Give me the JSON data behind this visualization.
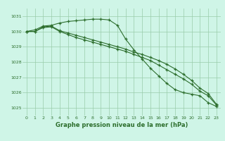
{
  "x": [
    0,
    1,
    2,
    3,
    4,
    5,
    6,
    7,
    8,
    9,
    10,
    11,
    12,
    13,
    14,
    15,
    16,
    17,
    18,
    19,
    20,
    21,
    22,
    23
  ],
  "line1": [
    1030.0,
    1030.1,
    1030.35,
    1030.4,
    1030.55,
    1030.65,
    1030.7,
    1030.75,
    1030.8,
    1030.8,
    1030.75,
    1030.4,
    1029.5,
    1028.8,
    1028.2,
    1027.6,
    1027.1,
    1026.6,
    1026.2,
    1026.0,
    1025.9,
    1025.8,
    1025.35,
    1025.1
  ],
  "line2": [
    1030.0,
    1030.0,
    1030.3,
    1030.35,
    1030.05,
    1029.9,
    1029.75,
    1029.6,
    1029.45,
    1029.3,
    1029.15,
    1029.0,
    1028.85,
    1028.65,
    1028.5,
    1028.3,
    1028.1,
    1027.85,
    1027.55,
    1027.2,
    1026.8,
    1026.3,
    1025.95,
    1025.25
  ],
  "line3": [
    1030.0,
    1030.0,
    1030.25,
    1030.3,
    1030.0,
    1029.8,
    1029.6,
    1029.45,
    1029.3,
    1029.15,
    1029.0,
    1028.85,
    1028.7,
    1028.5,
    1028.3,
    1028.1,
    1027.8,
    1027.5,
    1027.2,
    1026.9,
    1026.55,
    1026.1,
    1025.8,
    1025.2
  ],
  "ylim": [
    1024.5,
    1031.5
  ],
  "yticks": [
    1025,
    1026,
    1027,
    1028,
    1029,
    1030,
    1031
  ],
  "xticks": [
    0,
    1,
    2,
    3,
    4,
    5,
    6,
    7,
    8,
    9,
    10,
    11,
    12,
    13,
    14,
    15,
    16,
    17,
    18,
    19,
    20,
    21,
    22,
    23
  ],
  "xlabel": "Graphe pression niveau de la mer (hPa)",
  "bg_color": "#cff5e7",
  "line_color": "#2d6e2d",
  "grid_color": "#99ccaa"
}
